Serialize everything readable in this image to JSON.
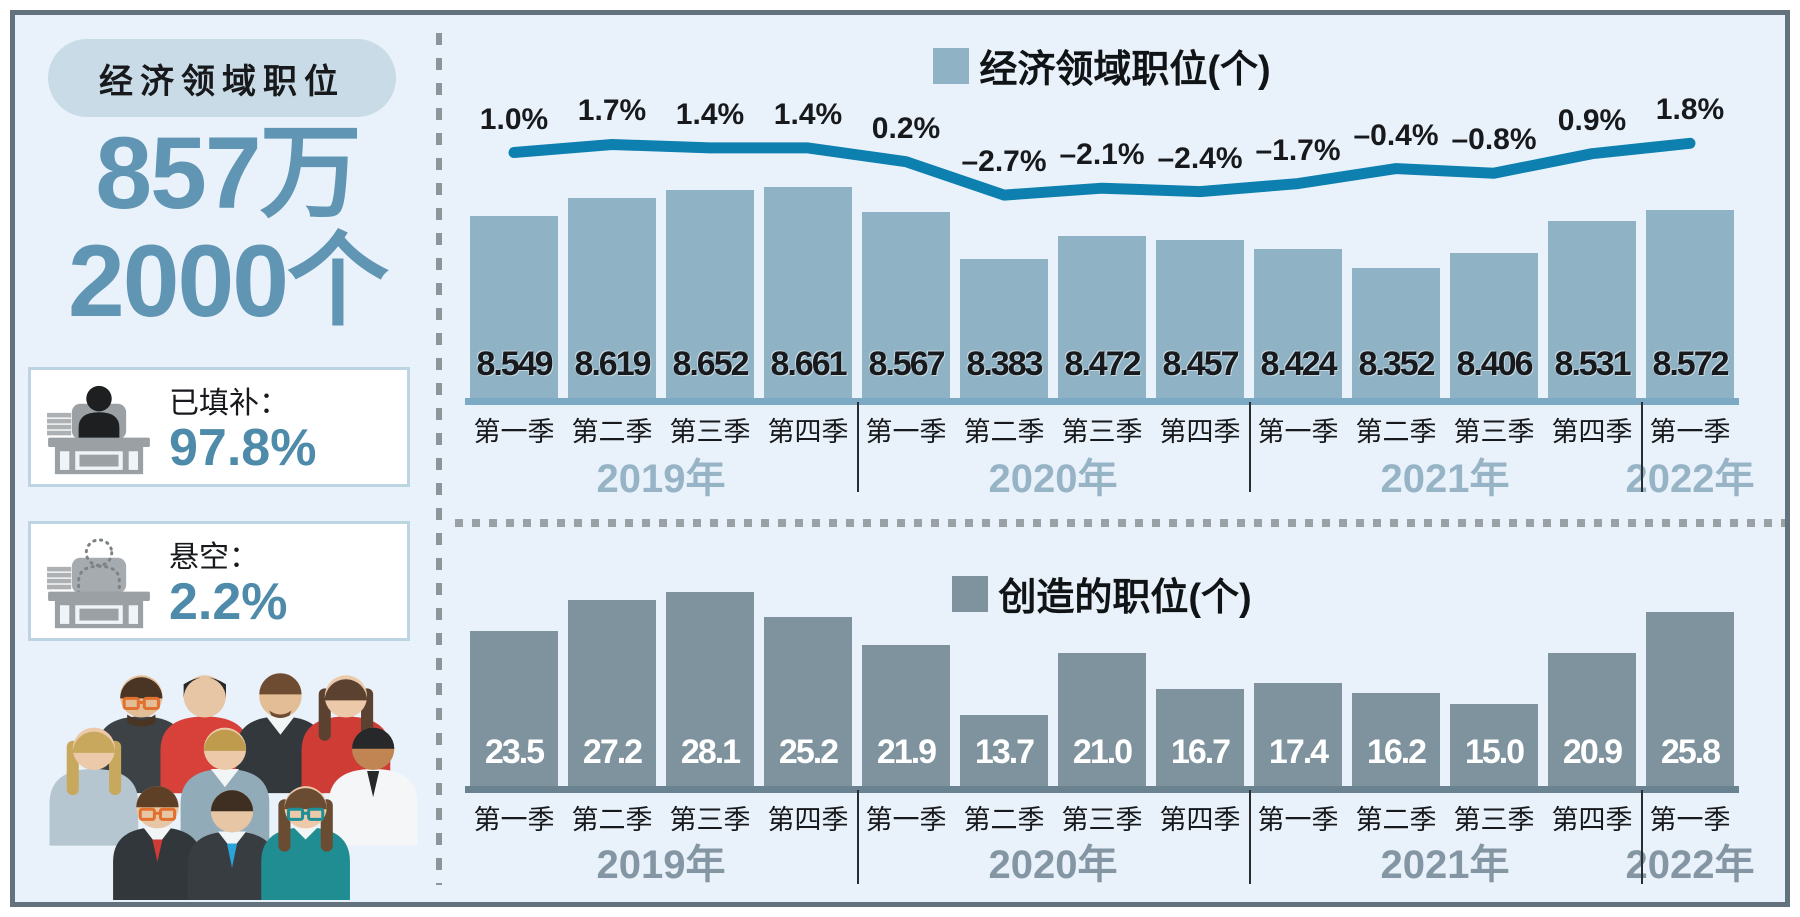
{
  "panel": {
    "title": "经济领域职位",
    "total_line1": "857万",
    "total_line2": "2000个",
    "filled_label": "已填补：",
    "filled_value": "97.8%",
    "vacant_label": "悬空：",
    "vacant_value": "2.2%"
  },
  "colors": {
    "background": "#e9f2fa",
    "frame_border": "#64727e",
    "accent_blue": "#6095b3",
    "stat_value_blue": "#4e8aa9",
    "top_bar": "#8fb2c5",
    "top_axis": "#7ca9c3",
    "top_year": "#97b4c6",
    "line": "#0d80b0",
    "bottom_bar": "#7e939e",
    "bottom_axis": "#6b8290",
    "bottom_year": "#8496a3"
  },
  "chart_data": [
    {
      "type": "bar",
      "legend": "经济领域职位(个)",
      "categories": [
        "第一季",
        "第二季",
        "第三季",
        "第四季",
        "第一季",
        "第二季",
        "第三季",
        "第四季",
        "第一季",
        "第二季",
        "第三季",
        "第四季",
        "第一季"
      ],
      "year_groups": [
        {
          "label": "2019年",
          "span": 4
        },
        {
          "label": "2020年",
          "span": 4
        },
        {
          "label": "2021年",
          "span": 4
        },
        {
          "label": "2022年",
          "span": 1
        }
      ],
      "values": [
        8.549,
        8.619,
        8.652,
        8.661,
        8.567,
        8.383,
        8.472,
        8.457,
        8.424,
        8.352,
        8.406,
        8.531,
        8.572
      ],
      "value_labels": [
        "8.549",
        "8.619",
        "8.652",
        "8.661",
        "8.567",
        "8.383",
        "8.472",
        "8.457",
        "8.424",
        "8.352",
        "8.406",
        "8.531",
        "8.572"
      ],
      "ylim": [
        7.85,
        8.75
      ],
      "line": {
        "values": [
          1.0,
          1.7,
          1.4,
          1.4,
          0.2,
          -2.7,
          -2.1,
          -2.4,
          -1.7,
          -0.4,
          -0.8,
          0.9,
          1.8
        ],
        "labels": [
          "1.0%",
          "1.7%",
          "1.4%",
          "1.4%",
          "0.2%",
          "–2.7%",
          "–2.1%",
          "–2.4%",
          "–1.7%",
          "–0.4%",
          "–0.8%",
          "0.9%",
          "1.8%"
        ]
      }
    },
    {
      "type": "bar",
      "legend": "创造的职位(个)",
      "categories": [
        "第一季",
        "第二季",
        "第三季",
        "第四季",
        "第一季",
        "第二季",
        "第三季",
        "第四季",
        "第一季",
        "第二季",
        "第三季",
        "第四季",
        "第一季"
      ],
      "year_groups": [
        {
          "label": "2019年",
          "span": 4
        },
        {
          "label": "2020年",
          "span": 4
        },
        {
          "label": "2021年",
          "span": 4
        },
        {
          "label": "2022年",
          "span": 1
        }
      ],
      "values": [
        23.5,
        27.2,
        28.1,
        25.2,
        21.9,
        13.7,
        21.0,
        16.7,
        17.4,
        16.2,
        15.0,
        20.9,
        25.8
      ],
      "value_labels": [
        "23.5",
        "27.2",
        "28.1",
        "25.2",
        "21.9",
        "13.7",
        "21.0",
        "16.7",
        "17.4",
        "16.2",
        "15.0",
        "20.9",
        "25.8"
      ],
      "ylim": [
        5.3,
        28.5
      ]
    }
  ]
}
